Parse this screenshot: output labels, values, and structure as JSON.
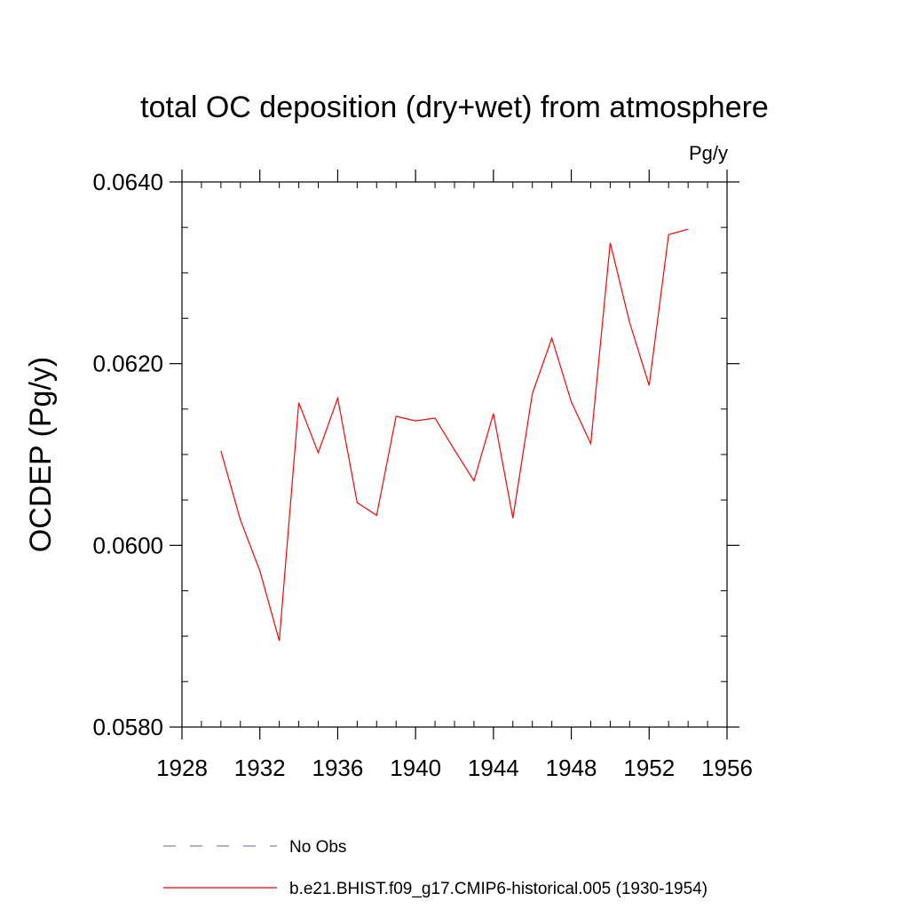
{
  "chart_data": {
    "type": "line",
    "title": "total OC deposition (dry+wet) from atmosphere",
    "units_label": "Pg/y",
    "ylabel": "OCDEP  (Pg/y)",
    "xlabel": "",
    "xlim": [
      1928,
      1956
    ],
    "ylim": [
      0.058,
      0.064
    ],
    "x_ticks": [
      1928,
      1932,
      1936,
      1940,
      1944,
      1948,
      1952,
      1956
    ],
    "x_tick_labels": [
      "1928",
      "1932",
      "1936",
      "1940",
      "1944",
      "1948",
      "1952",
      "1956"
    ],
    "y_ticks": [
      0.058,
      0.06,
      0.062,
      0.064
    ],
    "y_tick_labels": [
      "0.0580",
      "0.0600",
      "0.0620",
      "0.0640"
    ],
    "y_minor_tick_step": 0.0005,
    "x_minor_tick_step": 1,
    "grid": false,
    "legend_position": "bottom",
    "series": [
      {
        "name": "b.e21.BHIST.f09_g17.CMIP6-historical.005 (1930-1954)",
        "color": "#ff0000",
        "style": "solid",
        "x": [
          1930,
          1931,
          1932,
          1933,
          1934,
          1935,
          1936,
          1937,
          1938,
          1939,
          1940,
          1941,
          1942,
          1943,
          1944,
          1945,
          1946,
          1947,
          1948,
          1949,
          1950,
          1951,
          1952,
          1953,
          1954
        ],
        "y": [
          0.06104,
          0.06028,
          0.05972,
          0.05895,
          0.06157,
          0.06102,
          0.06162,
          0.06047,
          0.06033,
          0.06142,
          0.06137,
          0.0614,
          0.06105,
          0.06071,
          0.06145,
          0.0603,
          0.06167,
          0.06228,
          0.06158,
          0.06112,
          0.06333,
          0.06245,
          0.06176,
          0.06342,
          0.06348
        ]
      }
    ],
    "legend": [
      {
        "label": "No Obs",
        "color": "#8080c0",
        "style": "dashed"
      },
      {
        "label": "b.e21.BHIST.f09_g17.CMIP6-historical.005 (1930-1954)",
        "color": "#ff0000",
        "style": "solid"
      }
    ]
  }
}
